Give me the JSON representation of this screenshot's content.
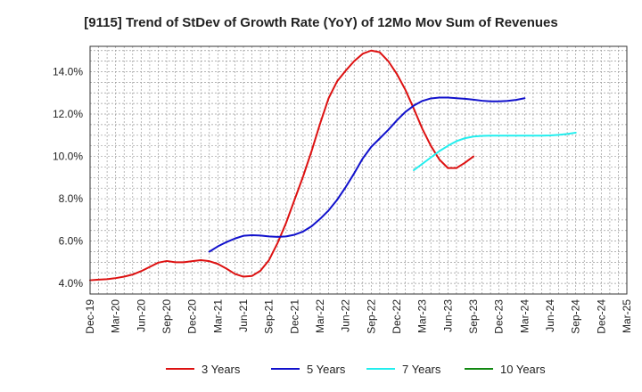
{
  "chart_data": {
    "type": "line",
    "title": "[9115]  Trend of StDev of Growth Rate (YoY) of 12Mo Mov Sum of Revenues",
    "xlabel": "",
    "ylabel": "",
    "x_ticks": [
      "Dec-19",
      "Mar-20",
      "Jun-20",
      "Sep-20",
      "Dec-20",
      "Mar-21",
      "Jun-21",
      "Sep-21",
      "Dec-21",
      "Mar-22",
      "Jun-22",
      "Sep-22",
      "Dec-22",
      "Mar-23",
      "Jun-23",
      "Sep-23",
      "Dec-23",
      "Mar-24",
      "Jun-24",
      "Sep-24",
      "Dec-24",
      "Mar-25"
    ],
    "y_ticks": [
      4.0,
      6.0,
      8.0,
      10.0,
      12.0,
      14.0
    ],
    "y_tick_labels": [
      "4.0%",
      "6.0%",
      "8.0%",
      "10.0%",
      "12.0%",
      "14.0%"
    ],
    "ylim": [
      3.5,
      15.2
    ],
    "grid": true,
    "legend_position": "bottom",
    "series": [
      {
        "name": "3 Years",
        "color": "#dd1111",
        "start": "Dec-19",
        "values": [
          4.15,
          4.18,
          4.2,
          4.25,
          4.32,
          4.42,
          4.58,
          4.78,
          4.98,
          5.06,
          5.0,
          5.0,
          5.05,
          5.1,
          5.05,
          4.92,
          4.7,
          4.45,
          4.32,
          4.35,
          4.6,
          5.1,
          5.9,
          6.85,
          7.95,
          9.05,
          10.25,
          11.55,
          12.75,
          13.55,
          14.05,
          14.5,
          14.85,
          15.0,
          14.92,
          14.5,
          13.9,
          13.15,
          12.25,
          11.3,
          10.5,
          9.85,
          9.45,
          9.45,
          9.7,
          10.0
        ]
      },
      {
        "name": "5 Years",
        "color": "#1111cc",
        "start": "Feb-21",
        "values": [
          5.5,
          5.75,
          5.95,
          6.12,
          6.25,
          6.28,
          6.26,
          6.22,
          6.2,
          6.22,
          6.3,
          6.45,
          6.7,
          7.05,
          7.45,
          7.95,
          8.55,
          9.2,
          9.9,
          10.45,
          10.85,
          11.25,
          11.7,
          12.1,
          12.4,
          12.62,
          12.74,
          12.78,
          12.78,
          12.75,
          12.72,
          12.68,
          12.63,
          12.6,
          12.6,
          12.62,
          12.67,
          12.75
        ]
      },
      {
        "name": "7 Years",
        "color": "#22eeee",
        "start": "Feb-23",
        "values": [
          9.35,
          9.65,
          9.95,
          10.25,
          10.5,
          10.72,
          10.86,
          10.94,
          10.97,
          10.98,
          10.98,
          10.98,
          10.98,
          10.98,
          10.98,
          10.98,
          10.99,
          11.02,
          11.06,
          11.12
        ]
      },
      {
        "name": "10 Years",
        "color": "#118811",
        "start": "",
        "values": []
      }
    ]
  }
}
